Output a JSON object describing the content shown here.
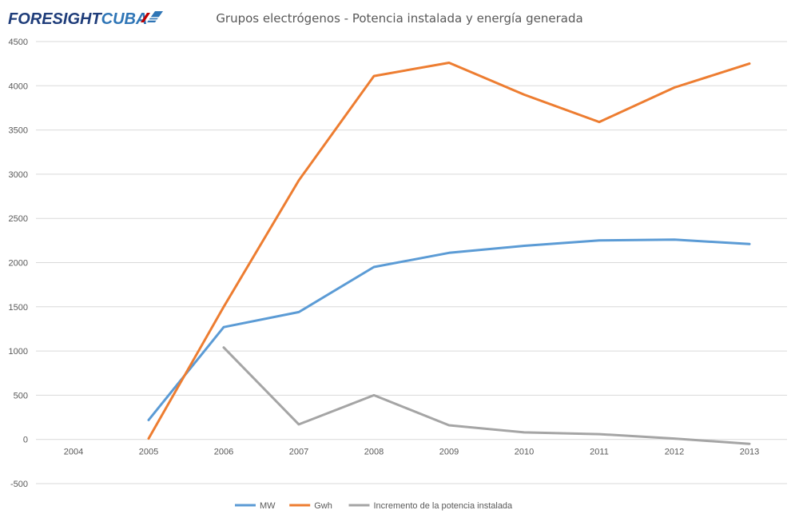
{
  "brand": {
    "logo_part1": "FORESIGHT",
    "logo_part2": "CUBA",
    "logo_color_dark": "#1f3d7a",
    "logo_color_light": "#2e75b6",
    "flag_red": "#c00000"
  },
  "chart_data": {
    "type": "line",
    "title": "Grupos electrógenos - Potencia instalada y energía generada",
    "xlabel": "",
    "ylabel": "",
    "categories": [
      "2004",
      "2005",
      "2006",
      "2007",
      "2008",
      "2009",
      "2010",
      "2011",
      "2012",
      "2013"
    ],
    "ylim": [
      -500,
      4500
    ],
    "yticks": [
      "-500",
      "0",
      "500",
      "1000",
      "1500",
      "2000",
      "2500",
      "3000",
      "3500",
      "4000",
      "4500"
    ],
    "grid": true,
    "legend_position": "bottom",
    "series": [
      {
        "name": "MW",
        "color": "#5b9bd5",
        "values": [
          null,
          220,
          1270,
          1440,
          1950,
          2110,
          2190,
          2250,
          2260,
          2210
        ]
      },
      {
        "name": "Gwh",
        "color": "#ed7d31",
        "values": [
          null,
          10,
          1500,
          2930,
          4110,
          4260,
          3900,
          3590,
          3980,
          4250
        ]
      },
      {
        "name": "Incremento de la potencia instalada",
        "color": "#a5a5a5",
        "values": [
          null,
          null,
          1040,
          170,
          500,
          160,
          80,
          60,
          10,
          -50
        ]
      }
    ]
  }
}
